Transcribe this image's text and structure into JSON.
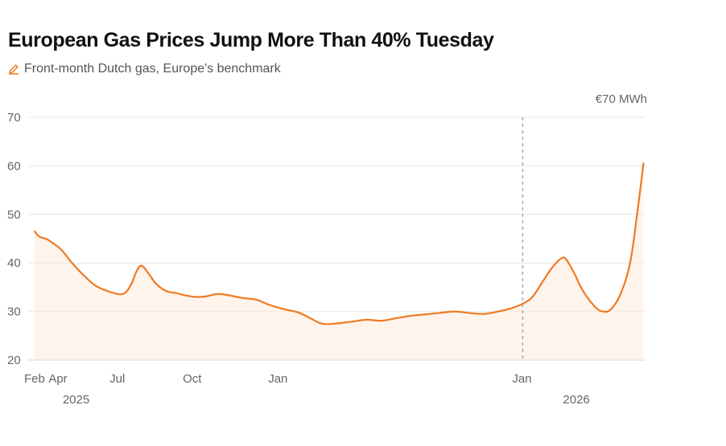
{
  "header": {
    "title": "European Gas Prices Jump More Than 40% Tuesday",
    "subtitle": "Front-month Dutch gas, Europe's benchmark"
  },
  "colors": {
    "line": "#f07a22",
    "area": "#fdebdc",
    "grid": "#e6e6e6",
    "marker": "#a8a8a8"
  },
  "chart_data": {
    "type": "area",
    "title": "European Gas Prices Jump More Than 40% Tuesday",
    "subtitle": "Front-month Dutch gas, Europe's benchmark",
    "unit_label": "€70 MWh",
    "ylim": [
      20,
      70
    ],
    "yticks": [
      20,
      30,
      40,
      50,
      60,
      70
    ],
    "xlim": [
      0,
      25
    ],
    "xticks": [
      {
        "x": 0,
        "label": "Feb"
      },
      {
        "x": 1,
        "label": "Apr"
      },
      {
        "x": 3.5,
        "label": "Jul"
      },
      {
        "x": 6.5,
        "label": "Oct"
      },
      {
        "x": 10,
        "label": "Jan"
      },
      {
        "x": 20,
        "label": "Jan"
      }
    ],
    "year_labels": [
      {
        "x": 1.7,
        "label": "2025"
      },
      {
        "x": 22.2,
        "label": "2026"
      }
    ],
    "marker_x": 20,
    "grid": true,
    "series": [
      {
        "name": "Front-month Dutch gas",
        "points": [
          [
            0.0,
            46.5
          ],
          [
            0.2,
            45.4
          ],
          [
            0.5,
            44.9
          ],
          [
            0.8,
            43.9
          ],
          [
            1.1,
            42.7
          ],
          [
            1.5,
            40.2
          ],
          [
            2.0,
            37.5
          ],
          [
            2.5,
            35.3
          ],
          [
            3.0,
            34.2
          ],
          [
            3.4,
            33.6
          ],
          [
            3.7,
            33.8
          ],
          [
            3.95,
            35.5
          ],
          [
            4.2,
            38.5
          ],
          [
            4.4,
            39.4
          ],
          [
            4.7,
            37.6
          ],
          [
            5.0,
            35.6
          ],
          [
            5.4,
            34.2
          ],
          [
            5.8,
            33.8
          ],
          [
            6.2,
            33.3
          ],
          [
            6.6,
            33.0
          ],
          [
            7.0,
            33.1
          ],
          [
            7.5,
            33.6
          ],
          [
            8.0,
            33.3
          ],
          [
            8.5,
            32.8
          ],
          [
            9.1,
            32.4
          ],
          [
            9.6,
            31.4
          ],
          [
            10.2,
            30.5
          ],
          [
            10.8,
            29.8
          ],
          [
            11.3,
            28.6
          ],
          [
            11.7,
            27.6
          ],
          [
            12.0,
            27.4
          ],
          [
            12.5,
            27.6
          ],
          [
            13.0,
            27.9
          ],
          [
            13.6,
            28.3
          ],
          [
            14.2,
            28.1
          ],
          [
            14.8,
            28.6
          ],
          [
            15.4,
            29.1
          ],
          [
            16.0,
            29.4
          ],
          [
            16.6,
            29.7
          ],
          [
            17.2,
            30.0
          ],
          [
            17.8,
            29.7
          ],
          [
            18.4,
            29.5
          ],
          [
            19.0,
            30.0
          ],
          [
            19.5,
            30.6
          ],
          [
            20.0,
            31.6
          ],
          [
            20.4,
            33.0
          ],
          [
            20.8,
            36.0
          ],
          [
            21.2,
            39.0
          ],
          [
            21.6,
            41.0
          ],
          [
            21.8,
            40.6
          ],
          [
            22.1,
            38.0
          ],
          [
            22.5,
            34.0
          ],
          [
            23.0,
            30.8
          ],
          [
            23.3,
            30.0
          ],
          [
            23.6,
            30.4
          ],
          [
            24.0,
            33.5
          ],
          [
            24.4,
            40.0
          ],
          [
            24.7,
            50.5
          ],
          [
            24.95,
            60.5
          ]
        ]
      }
    ]
  }
}
